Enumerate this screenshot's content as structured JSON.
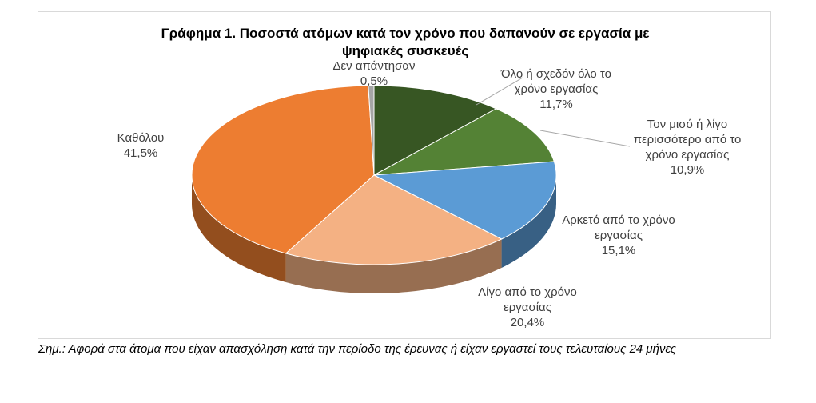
{
  "chart_data": {
    "type": "pie",
    "title_lines": [
      "Γράφημα 1. Ποσοστά ατόμων κατά τον χρόνο που δαπανούν σε εργασία με",
      "ψηφιακές συσκευές"
    ],
    "slices": [
      {
        "label": "Όλο ή σχεδόν όλο το χρόνο εργασίας",
        "label_lines": [
          "Όλο ή σχεδόν όλο το",
          "χρόνο εργασίας"
        ],
        "value": 11.7,
        "value_label": "11,7%",
        "color": "#375623"
      },
      {
        "label": "Τον μισό ή λίγο περισσότερο από το χρόνο εργασίας",
        "label_lines": [
          "Τον μισό ή λίγο",
          "περισσότερο από το",
          "χρόνο εργασίας"
        ],
        "value": 10.9,
        "value_label": "10,9%",
        "color": "#548235"
      },
      {
        "label": "Αρκετό από το χρόνο εργασίας",
        "label_lines": [
          "Αρκετό από το χρόνο",
          "εργασίας"
        ],
        "value": 15.1,
        "value_label": "15,1%",
        "color": "#5b9bd5"
      },
      {
        "label": "Λίγο από το χρόνο εργασίας",
        "label_lines": [
          "Λίγο από το χρόνο",
          "εργασίας"
        ],
        "value": 20.4,
        "value_label": "20,4%",
        "color": "#f4b183"
      },
      {
        "label": "Καθόλου",
        "label_lines": [
          "Καθόλου"
        ],
        "value": 41.5,
        "value_label": "41,5%",
        "color": "#ed7d31"
      },
      {
        "label": "Δεν απάντησαν",
        "label_lines": [
          "Δεν απάντησαν"
        ],
        "value": 0.5,
        "value_label": "0,5%",
        "color": "#a5a5a5"
      }
    ],
    "style": "3d-pie"
  },
  "note": "Σημ.: Αφορά στα άτομα που είχαν απασχόληση κατά την περίοδο της έρευνας ή είχαν εργαστεί τους τελευταίους 24 μήνες"
}
